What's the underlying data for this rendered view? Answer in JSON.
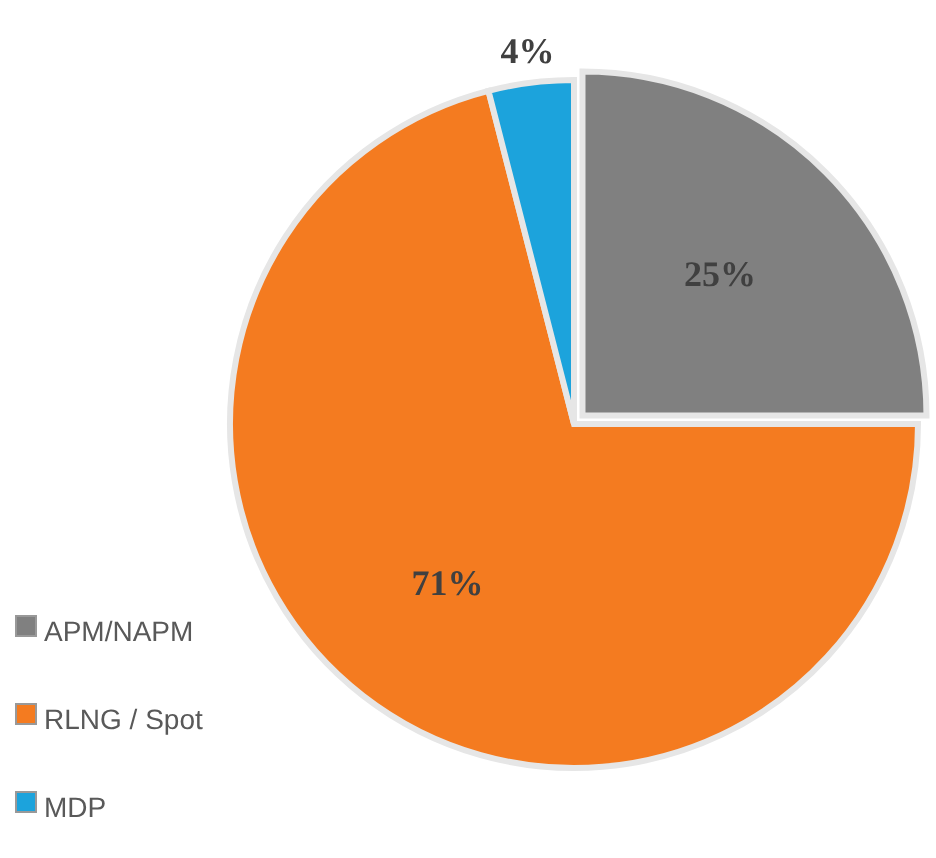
{
  "chart_data": {
    "type": "pie",
    "categories": [
      "APM/NAPM",
      "RLNG / Spot",
      "MDP"
    ],
    "values": [
      25,
      71,
      4
    ],
    "colors": [
      "#808080",
      "#f47b20",
      "#1ca3dc"
    ],
    "value_labels": [
      "25%",
      "71%",
      "4%"
    ],
    "legend": "bottom left"
  }
}
